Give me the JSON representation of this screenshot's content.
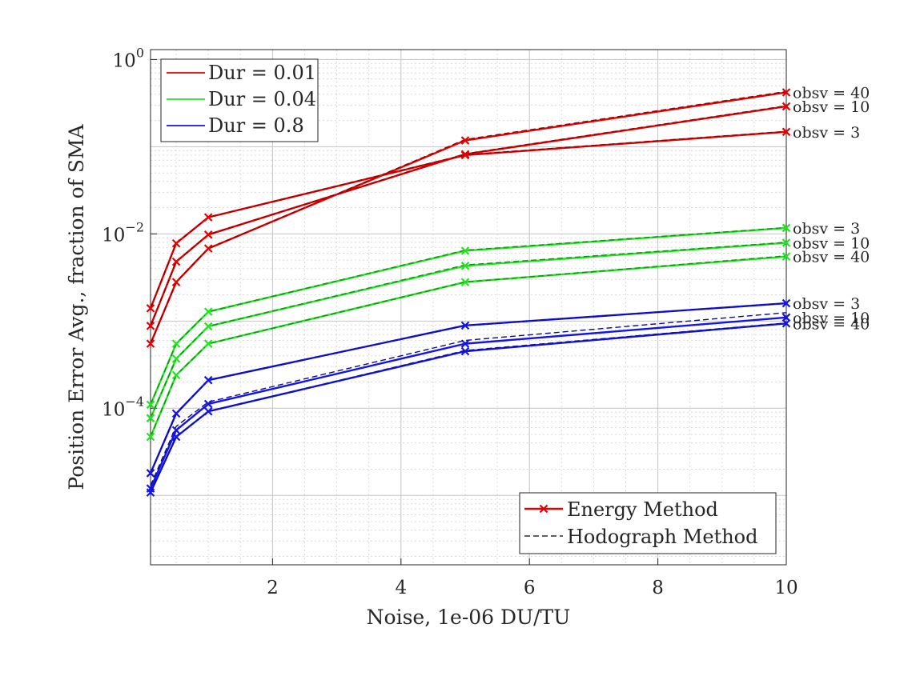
{
  "chart_data": {
    "type": "line",
    "xlabel": "Noise, 1e-06 DU/TU",
    "ylabel": "Position Error Avg., fraction of SMA",
    "x_scale": "linear",
    "y_scale": "log",
    "xlim": [
      0.1,
      10
    ],
    "ylim": [
      1.6e-06,
      1.3
    ],
    "x_ticks": [
      2,
      4,
      6,
      8,
      10
    ],
    "x_tick_labels": [
      "2",
      "4",
      "6",
      "8",
      "10"
    ],
    "y_ticks": [
      0.0001,
      0.01,
      1
    ],
    "y_tick_labels": [
      {
        "base": "10",
        "exp": "−4"
      },
      {
        "base": "10",
        "exp": "−2"
      },
      {
        "base": "10",
        "exp": "0"
      }
    ],
    "grid": true,
    "minor_grid": true,
    "x": [
      0.1,
      0.5,
      1,
      5,
      10
    ],
    "duration_legend": {
      "placement": "top-left",
      "entries": [
        {
          "label": "Dur = 0.01",
          "color": "#e60000"
        },
        {
          "label": "Dur = 0.04",
          "color": "#1ee61e"
        },
        {
          "label": "Dur = 0.8",
          "color": "#1414e6"
        }
      ]
    },
    "method_legend": {
      "placement": "bottom-right",
      "entries": [
        {
          "label": "Energy Method",
          "style": "solid",
          "marker": "x",
          "color": "#e60000"
        },
        {
          "label": "Hodograph Method",
          "style": "dashed",
          "color": "#000000"
        }
      ]
    },
    "series": [
      {
        "duration": "Dur = 0.01",
        "color": "#e60000",
        "end_label": "obsv = 40",
        "energy": [
          0.00055,
          0.0028,
          0.0068,
          0.118,
          0.42
        ],
        "hodograph": [
          0.00055,
          0.0028,
          0.0068,
          0.121,
          0.43
        ]
      },
      {
        "duration": "Dur = 0.01",
        "color": "#e60000",
        "end_label": "obsv = 10",
        "energy": [
          0.00088,
          0.0048,
          0.0098,
          0.082,
          0.29
        ],
        "hodograph": [
          0.00088,
          0.0048,
          0.0098,
          0.083,
          0.295
        ]
      },
      {
        "duration": "Dur = 0.01",
        "color": "#e60000",
        "end_label": "obsv = 3",
        "energy": [
          0.0014,
          0.0078,
          0.0155,
          0.08,
          0.148
        ],
        "hodograph": [
          0.0014,
          0.0078,
          0.0155,
          0.081,
          0.15
        ]
      },
      {
        "duration": "Dur = 0.04",
        "color": "#1ee61e",
        "end_label": "obsv = 3",
        "energy": [
          0.00011,
          0.00055,
          0.00128,
          0.0064,
          0.0117
        ],
        "hodograph": [
          0.00011,
          0.00055,
          0.00128,
          0.0065,
          0.0118
        ]
      },
      {
        "duration": "Dur = 0.04",
        "color": "#1ee61e",
        "end_label": "obsv = 10",
        "energy": [
          7.7e-05,
          0.00037,
          0.00087,
          0.0043,
          0.0079
        ],
        "hodograph": [
          7.7e-05,
          0.00037,
          0.00087,
          0.0044,
          0.008
        ]
      },
      {
        "duration": "Dur = 0.04",
        "color": "#1ee61e",
        "end_label": "obsv = 40",
        "energy": [
          4.7e-05,
          0.00024,
          0.00055,
          0.0028,
          0.0055
        ],
        "hodograph": [
          4.7e-05,
          0.00024,
          0.00055,
          0.0028,
          0.0056
        ]
      },
      {
        "duration": "Dur = 0.8",
        "color": "#1414e6",
        "end_label": "obsv = 3",
        "energy": [
          1.8e-05,
          8.7e-05,
          0.00021,
          0.00089,
          0.0016
        ],
        "hodograph": [
          1.8e-05,
          8.7e-05,
          0.00021,
          0.00089,
          0.0016
        ]
      },
      {
        "duration": "Dur = 0.8",
        "color": "#1414e6",
        "end_label": "obsv = 10",
        "energy": [
          1.2e-05,
          5.6e-05,
          0.000112,
          0.00055,
          0.0011
        ],
        "hodograph": [
          1.3e-05,
          6.2e-05,
          0.000118,
          0.0006,
          0.00125
        ]
      },
      {
        "duration": "Dur = 0.8",
        "color": "#1414e6",
        "end_label": "obsv = 40",
        "energy": [
          1.08e-05,
          4.7e-05,
          9.2e-05,
          0.00045,
          0.00094
        ],
        "hodograph": [
          1.08e-05,
          4.7e-05,
          9.2e-05,
          0.00046,
          0.00095
        ]
      }
    ]
  }
}
